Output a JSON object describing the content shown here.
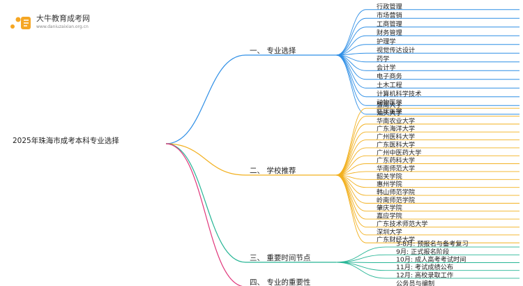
{
  "logo": {
    "name": "大牛教育成考网",
    "url": "www.daniuzaixian.org.cn"
  },
  "root": {
    "label": "2025年珠海市成考本科专业选择"
  },
  "colors": {
    "branch1": "#2f8fe6",
    "branch2": "#f2b01e",
    "branch3": "#26b595",
    "branch4": "#e0357a",
    "logo_orange": "#f5a623"
  },
  "branches": [
    {
      "label": "一、 专业选择",
      "color_key": "branch1",
      "children": [
        "行政管理",
        "市场营销",
        "工商管理",
        "财务管理",
        "护理学",
        "视觉传达设计",
        "药学",
        "会计学",
        "电子商务",
        "土木工程",
        "计算机科学技术",
        "动物医学",
        "临床医学"
      ]
    },
    {
      "label": "二、 学校推荐",
      "color_key": "branch2",
      "children": [
        "暨南大学",
        "汕头大学",
        "华南农业大学",
        "广东海洋大学",
        "广州医科大学",
        "广东医科大学",
        "广州中医药大学",
        "广东药科大学",
        "华南师范大学",
        "韶关学院",
        "惠州学院",
        "韩山师范学院",
        "岭南师范学院",
        "肇庆学院",
        "嘉应学院",
        "广东技术师范大学",
        "深圳大学",
        "广东财经大学"
      ]
    },
    {
      "label": "三、 重要时间节点",
      "color_key": "branch3",
      "children": [
        "3-8月: 预报名与备考复习",
        "9月: 正式报名阶段",
        "10月: 成人高考考试时间",
        "11月: 考试成绩公布",
        "12月: 高校录取工作"
      ]
    },
    {
      "label": "四、 专业的重要性",
      "color_key": "branch4",
      "children": [
        "公务员与编制"
      ]
    }
  ]
}
